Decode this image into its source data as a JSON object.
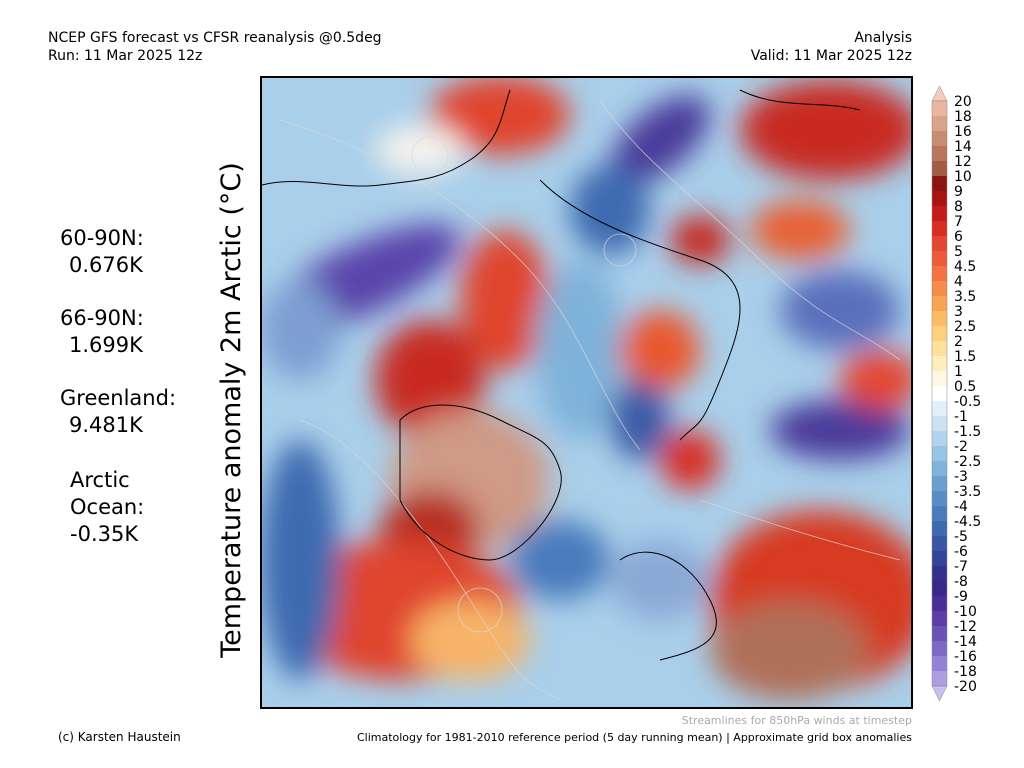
{
  "header": {
    "title": "NCEP GFS forecast vs CFSR reanalysis @0.5deg",
    "run": "Run: 11 Mar 2025 12z",
    "mode": "Analysis",
    "valid": "Valid: 11 Mar 2025 12z"
  },
  "stats": [
    {
      "label": "60-90N:",
      "value": "0.676K"
    },
    {
      "label": "66-90N:",
      "value": "1.699K"
    },
    {
      "label": "Greenland:",
      "value": "9.481K"
    },
    {
      "label": "Arctic Ocean:",
      "value": "-0.35K"
    }
  ],
  "map": {
    "axis_label": "Temperature anomaly 2m Arctic (°C)"
  },
  "colorbar": {
    "labels": [
      20,
      18,
      16,
      14,
      12,
      10,
      9,
      8,
      7,
      6,
      5,
      4.5,
      4,
      3.5,
      3,
      2.5,
      2,
      1.5,
      1,
      0.5,
      -0.5,
      -1,
      -1.5,
      -2,
      -2.5,
      -3,
      -3.5,
      -4,
      -4.5,
      -5,
      -6,
      -7,
      -8,
      -9,
      -10,
      -12,
      -14,
      -16,
      -18,
      -20
    ],
    "colors": [
      "#f5cdbd",
      "#e8b6a2",
      "#d9a28a",
      "#c98c72",
      "#b8765c",
      "#a35c44",
      "#8b1414",
      "#a81414",
      "#c41c1c",
      "#d82e22",
      "#e44632",
      "#ec5c38",
      "#f27442",
      "#f68c4a",
      "#f9a454",
      "#fbbc66",
      "#fcd07e",
      "#fde09c",
      "#feeebc",
      "#fff8e2",
      "#ffffff",
      "#e4f0f9",
      "#cce2f3",
      "#b2d4ec",
      "#98c4e4",
      "#80b2da",
      "#6aa0d0",
      "#588ec6",
      "#4a7cbc",
      "#3e6ab0",
      "#3856a4",
      "#344498",
      "#32328c",
      "#3a2888",
      "#4a2e96",
      "#5a3ea6",
      "#6a52b6",
      "#7e68c6",
      "#9482d4",
      "#ac9ee0",
      "#cbbfee"
    ]
  },
  "footer": {
    "credit": "(c) Karsten Haustein",
    "streamlines": "Streamlines for 850hPa winds at timestep",
    "note": "Climatology for 1981-2010 reference period (5 day running mean) | Approximate grid box anomalies"
  }
}
